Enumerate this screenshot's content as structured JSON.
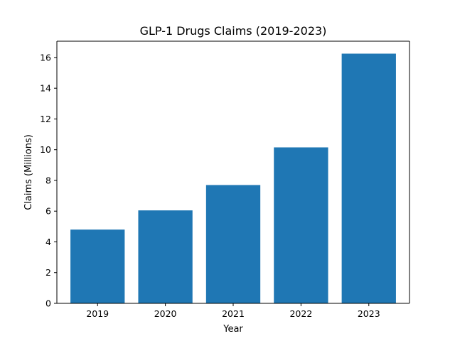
{
  "chart_data": {
    "type": "bar",
    "title": "GLP-1 Drugs Claims (2019-2023)",
    "xlabel": "Year",
    "ylabel": "Claims (Millions)",
    "categories": [
      "2019",
      "2020",
      "2021",
      "2022",
      "2023"
    ],
    "values": [
      4.8,
      6.05,
      7.7,
      10.15,
      16.25
    ],
    "ylim": [
      0,
      17.06
    ],
    "yticks": [
      0,
      2,
      4,
      6,
      8,
      10,
      12,
      14,
      16
    ],
    "bar_color": "#1f77b4",
    "grid": false
  }
}
